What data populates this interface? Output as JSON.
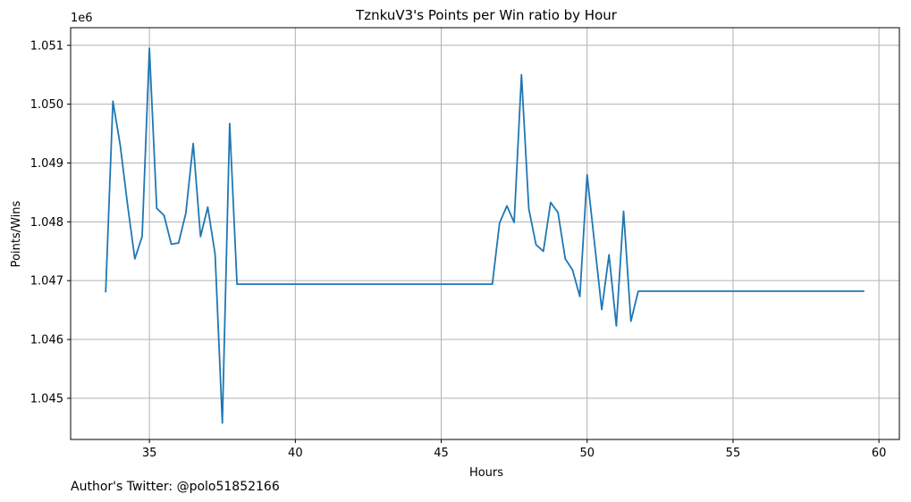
{
  "chart_data": {
    "type": "line",
    "title": "TznkuV3's Points per Win ratio by Hour",
    "xlabel": "Hours",
    "ylabel": "Points/Wins",
    "y_offset_label": "1e6",
    "xlim": [
      32.3,
      60.7
    ],
    "ylim": [
      1044.3,
      1051.3
    ],
    "x_ticks": [
      35,
      40,
      45,
      50,
      55,
      60
    ],
    "y_ticks": [
      1045,
      1046,
      1047,
      1048,
      1049,
      1050,
      1051
    ],
    "y_tick_labels": [
      "1.045",
      "1.046",
      "1.047",
      "1.048",
      "1.049",
      "1.050",
      "1.051"
    ],
    "grid": true,
    "line_color": "#1f77b4",
    "series": [
      {
        "x": [
          33.5,
          33.75,
          34.0,
          34.25,
          34.5,
          34.75,
          35.0,
          35.25,
          35.5,
          35.75,
          36.0,
          36.25,
          36.5,
          36.75,
          37.0,
          37.25,
          37.5,
          37.75,
          38.0,
          46.75,
          47.0,
          47.25,
          47.5,
          47.75,
          48.0,
          48.25,
          48.5,
          48.75,
          49.0,
          49.25,
          49.5,
          49.75,
          50.0,
          50.25,
          50.5,
          50.75,
          51.0,
          51.25,
          51.5,
          51.75,
          59.5
        ],
        "y": [
          1046.8,
          1050.05,
          1049.3,
          1048.3,
          1047.37,
          1047.75,
          1050.95,
          1048.23,
          1048.11,
          1047.62,
          1047.64,
          1048.15,
          1049.33,
          1047.75,
          1048.25,
          1047.45,
          1044.58,
          1049.67,
          1046.94,
          1046.94,
          1047.98,
          1048.27,
          1047.99,
          1050.5,
          1048.22,
          1047.61,
          1047.5,
          1048.33,
          1048.16,
          1047.37,
          1047.18,
          1046.73,
          1048.8,
          1047.65,
          1046.51,
          1047.44,
          1046.23,
          1048.18,
          1046.31,
          1046.82,
          1046.82
        ]
      }
    ]
  },
  "footer": {
    "author": "Author's Twitter: @polo51852166"
  }
}
